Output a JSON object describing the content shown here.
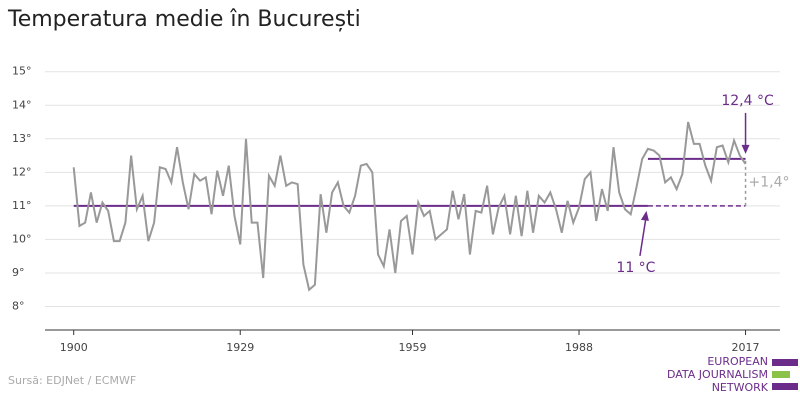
{
  "chart_data": {
    "type": "line",
    "title": "Temperatura medie în București",
    "x": [
      1900,
      1901,
      1902,
      1903,
      1904,
      1905,
      1906,
      1907,
      1908,
      1909,
      1910,
      1911,
      1912,
      1913,
      1914,
      1915,
      1916,
      1917,
      1918,
      1919,
      1920,
      1921,
      1922,
      1923,
      1924,
      1925,
      1926,
      1927,
      1928,
      1929,
      1930,
      1931,
      1932,
      1933,
      1934,
      1935,
      1936,
      1937,
      1938,
      1939,
      1940,
      1941,
      1942,
      1943,
      1944,
      1945,
      1946,
      1947,
      1948,
      1949,
      1950,
      1951,
      1952,
      1953,
      1954,
      1955,
      1956,
      1957,
      1958,
      1959,
      1960,
      1961,
      1962,
      1963,
      1964,
      1965,
      1966,
      1967,
      1968,
      1969,
      1970,
      1971,
      1972,
      1973,
      1974,
      1975,
      1976,
      1977,
      1978,
      1979,
      1980,
      1981,
      1982,
      1983,
      1984,
      1985,
      1986,
      1987,
      1988,
      1989,
      1990,
      1991,
      1992,
      1993,
      1994,
      1995,
      1996,
      1997,
      1998,
      1999,
      2000,
      2001,
      2002,
      2003,
      2004,
      2005,
      2006,
      2007,
      2008,
      2009,
      2010,
      2011,
      2012,
      2013,
      2014,
      2015,
      2016,
      2017
    ],
    "series": [
      {
        "color": "#999999",
        "values": [
          12.15,
          10.4,
          10.5,
          11.4,
          10.5,
          11.1,
          10.85,
          9.95,
          9.95,
          10.5,
          12.5,
          10.9,
          11.3,
          9.95,
          10.5,
          12.15,
          12.1,
          11.7,
          12.75,
          11.7,
          10.9,
          11.95,
          11.75,
          11.85,
          10.75,
          12.05,
          11.3,
          12.2,
          10.7,
          9.85,
          13.0,
          10.5,
          10.5,
          8.85,
          11.9,
          11.6,
          12.5,
          11.6,
          11.7,
          11.65,
          9.25,
          8.5,
          8.65,
          11.35,
          10.2,
          11.4,
          11.7,
          11.0,
          10.8,
          11.3,
          12.2,
          12.25,
          12.0,
          9.55,
          9.2,
          10.3,
          9.0,
          10.55,
          10.7,
          9.55,
          11.1,
          10.7,
          10.85,
          10.0,
          10.15,
          10.3,
          11.45,
          10.6,
          11.35,
          9.55,
          10.85,
          10.8,
          11.6,
          10.15,
          10.95,
          11.3,
          10.15,
          11.3,
          10.1,
          11.45,
          10.2,
          11.3,
          11.1,
          11.4,
          10.9,
          10.2,
          11.15,
          10.5,
          10.95,
          11.8,
          12.0,
          10.55,
          11.5,
          10.85,
          12.75,
          11.4,
          10.9,
          10.75,
          11.55,
          12.4,
          12.7,
          12.65,
          12.5,
          11.7,
          11.85,
          11.5,
          11.95,
          13.5,
          12.85,
          12.85,
          12.2,
          11.75,
          12.75,
          12.8,
          12.3,
          12.95,
          12.5,
          12.25
        ]
      }
    ],
    "xlim": [
      1895,
      2023
    ],
    "xticks": [
      1900,
      1929,
      1959,
      1988,
      2017
    ],
    "ylim": [
      7.3,
      15.2
    ],
    "yticks": [
      {
        "value": 8,
        "label": "8°"
      },
      {
        "value": 9,
        "label": "9°"
      },
      {
        "value": 10,
        "label": "10°"
      },
      {
        "value": 11,
        "label": "11°"
      },
      {
        "value": 12,
        "label": "12°"
      },
      {
        "value": 13,
        "label": "13°"
      },
      {
        "value": 14,
        "label": "14°"
      },
      {
        "value": 15,
        "label": "15°"
      }
    ],
    "grid": true,
    "reference_lines": [
      {
        "value": 11,
        "x": [
          1900,
          2000
        ],
        "label": "11 °C",
        "color": "#6b2c8a"
      },
      {
        "value": 12.4,
        "x": [
          2000,
          2017
        ],
        "label": "12,4 °C",
        "color": "#6b2c8a"
      }
    ],
    "difference": {
      "x": 2017,
      "from": 11,
      "to": 12.4,
      "label": "+1,4°"
    },
    "source": "Sursă: EDJNet / ECMWF",
    "logo": [
      "EUROPEAN",
      "DATA JOURNALISM",
      "NETWORK"
    ]
  }
}
